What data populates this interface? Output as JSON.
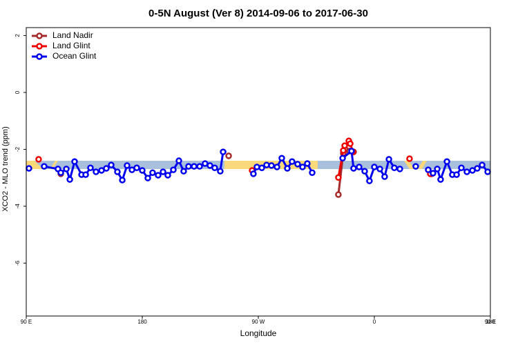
{
  "chart_data": {
    "type": "line",
    "title": "0-5N August (Ver 8)   2014-09-06 to 2017-06-30",
    "x_label": "Longitude",
    "y_label": "XCO2 - MLO trend (ppm)",
    "xlim": [
      90,
      450
    ],
    "xticks": [
      {
        "value": 90,
        "label": "90 E"
      },
      {
        "value": 180,
        "label": "180"
      },
      {
        "value": 270,
        "label": "90 W"
      },
      {
        "value": 360,
        "label": "0"
      },
      {
        "value": 450,
        "label": "90 E"
      },
      {
        "value": 540,
        "label": "180"
      }
    ],
    "ylim": [
      -7.86,
      2.28
    ],
    "yticks": [
      2,
      0,
      -2,
      -4,
      -6
    ],
    "legend": "top-left",
    "series": [
      {
        "name": "Land Nadir",
        "color": "#a52a2a",
        "x": [
          116.8,
          200,
          247.0,
          290,
          332.1,
          335.9,
          337.5,
          340.7,
          343.9,
          380,
          404.5
        ],
        "values": [
          -2.86,
          null,
          -2.23,
          null,
          -3.59,
          -2.14,
          -2.01,
          -2.06,
          -2.09,
          null,
          -2.86
        ]
      },
      {
        "name": "Land Glint",
        "color": "#ee0000",
        "x": [
          99.6,
          200,
          265.2,
          300,
          332.1,
          335.9,
          337.0,
          340.2,
          341.3,
          343.4,
          370,
          387.3,
          395,
          403.4
        ],
        "values": [
          -2.35,
          null,
          -2.74,
          null,
          -2.99,
          -2.04,
          -1.87,
          -1.7,
          -1.8,
          -2.09,
          null,
          -2.33,
          null,
          -2.86
        ]
      },
      {
        "name": "Ocean Glint",
        "color": "#0000ee",
        "x": [
          92.1,
          98,
          103.9,
          114.6,
          116.8,
          121.1,
          123.8,
          127.5,
          132.9,
          136.1,
          139.8,
          144.1,
          148.4,
          152.1,
          155.9,
          160.7,
          164.5,
          168.2,
          172.0,
          175.7,
          180.0,
          184.3,
          188.0,
          192.3,
          196.1,
          199.8,
          204.1,
          208.4,
          212.1,
          215.9,
          220.2,
          224.5,
          228.7,
          232.5,
          236.2,
          240.5,
          242.7,
          245,
          266.2,
          268.9,
          272.7,
          276.4,
          280.2,
          284.5,
          288.2,
          292.5,
          296.2,
          300.5,
          304.3,
          308.0,
          311.8,
          315,
          335.4,
          342.3,
          343.9,
          348.2,
          352.5,
          356.2,
          360.0,
          364.3,
          368.0,
          371.3,
          375.5,
          379.8,
          390,
          392.1,
          400,
          401.8,
          405.5,
          408.8,
          411.4,
          416.3,
          420.5,
          423.8,
          427.5,
          431.8,
          436.1,
          439.8,
          443.6,
          447.9
        ],
        "values": [
          -2.67,
          null,
          -2.6,
          -2.69,
          -2.82,
          -2.69,
          -3.06,
          -2.43,
          -2.89,
          -2.89,
          -2.65,
          -2.79,
          -2.74,
          -2.67,
          -2.55,
          -2.79,
          -3.08,
          -2.57,
          -2.72,
          -2.65,
          -2.74,
          -3.01,
          -2.82,
          -2.91,
          -2.79,
          -2.91,
          -2.72,
          -2.4,
          -2.77,
          -2.6,
          -2.6,
          -2.6,
          -2.5,
          -2.57,
          -2.65,
          -2.77,
          -2.09,
          null,
          -2.86,
          -2.62,
          -2.65,
          -2.55,
          -2.57,
          -2.62,
          -2.31,
          -2.67,
          -2.43,
          -2.52,
          -2.62,
          -2.5,
          -2.82,
          null,
          -2.31,
          -2.06,
          -2.67,
          -2.62,
          -2.77,
          -3.11,
          -2.62,
          -2.69,
          -2.96,
          -2.35,
          -2.65,
          -2.69,
          null,
          -2.6,
          null,
          -2.72,
          -2.84,
          -2.69,
          -3.06,
          -2.43,
          -2.89,
          -2.89,
          -2.65,
          -2.79,
          -2.74,
          -2.67,
          -2.55,
          -2.79
        ]
      }
    ]
  }
}
